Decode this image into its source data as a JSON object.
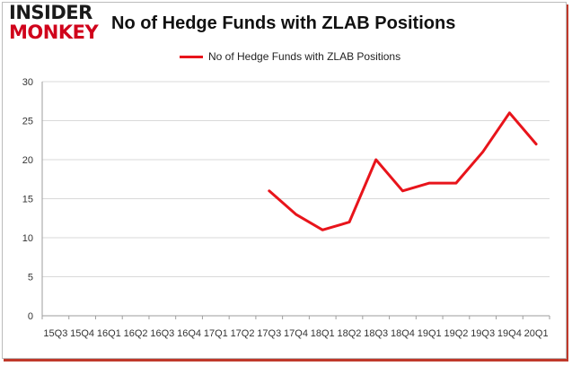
{
  "header": {
    "logo_line1": "INSIDER",
    "logo_line2": "MONKEY",
    "title": "No of Hedge Funds with ZLAB Positions"
  },
  "colors": {
    "series": "#e8141b",
    "logo_red": "#d0021b",
    "grid": "#d9d9d9"
  },
  "chart_data": {
    "type": "line",
    "title": "No of Hedge Funds with ZLAB Positions",
    "xlabel": "",
    "ylabel": "",
    "categories": [
      "Q3 2015",
      "Q4 2015",
      "Q1 2016",
      "Q2 2016",
      "Q3 2016",
      "Q4 2016",
      "Q1 2017",
      "Q2 2017",
      "Q3 2017",
      "Q4 2017",
      "Q1 2018",
      "Q2 2018",
      "Q3 2018",
      "Q4 2018",
      "Q1 2019",
      "Q2 2019",
      "Q3 2019",
      "Q4 2019",
      "Q1 2020"
    ],
    "tick_fragments": [
      "15Q3",
      "15Q4",
      "16Q1",
      "16Q2",
      "16Q3",
      "16Q4",
      "17Q1",
      "17Q2",
      "17Q3",
      "17Q4",
      "18Q1",
      "18Q2",
      "18Q3",
      "18Q4",
      "19Q1",
      "19Q2",
      "19Q3",
      "19Q4",
      "20Q1"
    ],
    "series": [
      {
        "name": "No of Hedge Funds with ZLAB Positions",
        "values": [
          null,
          null,
          null,
          null,
          null,
          null,
          null,
          null,
          16,
          13,
          11,
          12,
          20,
          16,
          17,
          17,
          21,
          26,
          22
        ]
      }
    ],
    "ylim": [
      0,
      30
    ],
    "yticks": [
      0,
      5,
      10,
      15,
      20,
      25,
      30
    ],
    "grid": "horizontal",
    "legend_position": "top-center"
  }
}
